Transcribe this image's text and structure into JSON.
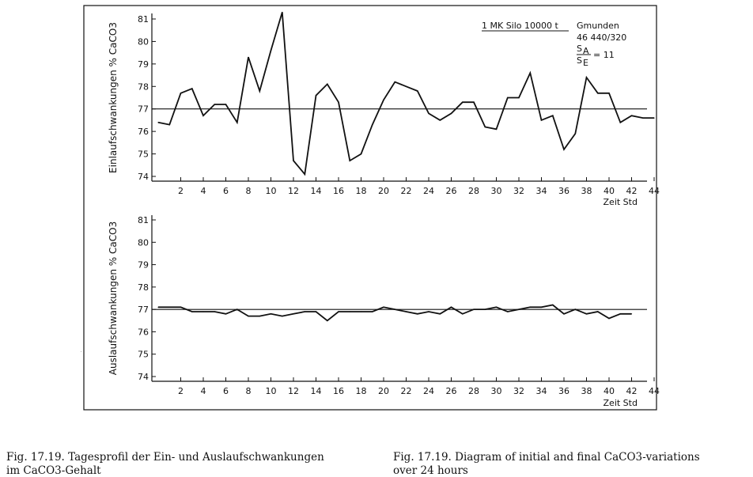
{
  "chart_data": [
    {
      "type": "line",
      "ylabel": "Einlaufschwankungen % CaCO3",
      "xlabel": "Zeit Std",
      "yticks": [
        "74",
        "75",
        "76",
        "77",
        "78",
        "79",
        "80",
        "81"
      ],
      "xticks": [
        "2",
        "4",
        "6",
        "8",
        "10",
        "12",
        "14",
        "16",
        "18",
        "20",
        "22",
        "24",
        "26",
        "28",
        "30",
        "32",
        "34",
        "36",
        "38",
        "40",
        "42",
        "44"
      ],
      "ylim": [
        74,
        81
      ],
      "xlim": [
        0,
        45
      ],
      "reference_line": 77.0,
      "annotation": {
        "line1": "1 MK  Silo 10000 t",
        "line2": "Gmunden",
        "line3": "46 440/320",
        "ratio_num": "S",
        "ratio_num_sub": "A",
        "ratio_den": "S",
        "ratio_den_sub": "E",
        "ratio_value": "= 11"
      },
      "series": [
        {
          "x": [
            0,
            1,
            2,
            3,
            4,
            5,
            6,
            7,
            8,
            9,
            10,
            11,
            12,
            13,
            14,
            15,
            16,
            17,
            18,
            19,
            20,
            21,
            22,
            23,
            24,
            25,
            26,
            27,
            28,
            29,
            30,
            31,
            32,
            33,
            34,
            35,
            36,
            37,
            38,
            39,
            40,
            41,
            42,
            43,
            44
          ],
          "y": [
            76.4,
            76.3,
            77.7,
            77.9,
            76.7,
            77.2,
            77.2,
            76.4,
            79.3,
            77.8,
            79.6,
            81.3,
            74.7,
            74.1,
            77.6,
            78.1,
            77.3,
            74.7,
            75.0,
            76.3,
            77.4,
            78.2,
            78.0,
            77.8,
            76.8,
            76.5,
            76.8,
            77.3,
            77.3,
            76.2,
            76.1,
            77.5,
            77.5,
            78.6,
            76.5,
            76.7,
            75.2,
            75.9,
            78.4,
            77.7,
            77.7,
            76.4,
            76.7,
            76.6,
            76.6
          ]
        }
      ]
    },
    {
      "type": "line",
      "ylabel": "Auslaufschwankungen % CaCO3",
      "xlabel": "Zeit Std",
      "yticks": [
        "74",
        "75",
        "76",
        "77",
        "78",
        "79",
        "80",
        "81"
      ],
      "xticks": [
        "2",
        "4",
        "6",
        "8",
        "10",
        "12",
        "14",
        "16",
        "18",
        "20",
        "22",
        "24",
        "26",
        "28",
        "30",
        "32",
        "34",
        "36",
        "38",
        "40",
        "42",
        "44"
      ],
      "ylim": [
        74,
        81
      ],
      "xlim": [
        0,
        45
      ],
      "reference_line": 77.0,
      "series": [
        {
          "x": [
            0,
            1,
            2,
            3,
            4,
            5,
            6,
            7,
            8,
            9,
            10,
            11,
            12,
            13,
            14,
            15,
            16,
            17,
            18,
            19,
            20,
            21,
            22,
            23,
            24,
            25,
            26,
            27,
            28,
            29,
            30,
            31,
            32,
            33,
            34,
            35,
            36,
            37,
            38,
            39,
            40,
            41,
            42
          ],
          "y": [
            77.1,
            77.1,
            77.1,
            76.9,
            76.9,
            76.9,
            76.8,
            77.0,
            76.7,
            76.7,
            76.8,
            76.7,
            76.8,
            76.9,
            76.9,
            76.5,
            76.9,
            76.9,
            76.9,
            76.9,
            77.1,
            77.0,
            76.9,
            76.8,
            76.9,
            76.8,
            77.1,
            76.8,
            77.0,
            77.0,
            77.1,
            76.9,
            77.0,
            77.1,
            77.1,
            77.2,
            76.8,
            77.0,
            76.8,
            76.9,
            76.6,
            76.8,
            76.8
          ]
        }
      ]
    }
  ],
  "captions": {
    "german_line1": "Fig. 17.19.  Tagesprofil der Ein- und Auslaufschwankungen",
    "german_line2": "im CaCO3-Gehalt",
    "english_line1": "Fig. 17.19.  Diagram of initial and final CaCO3-variations",
    "english_line2": "over 24 hours"
  }
}
